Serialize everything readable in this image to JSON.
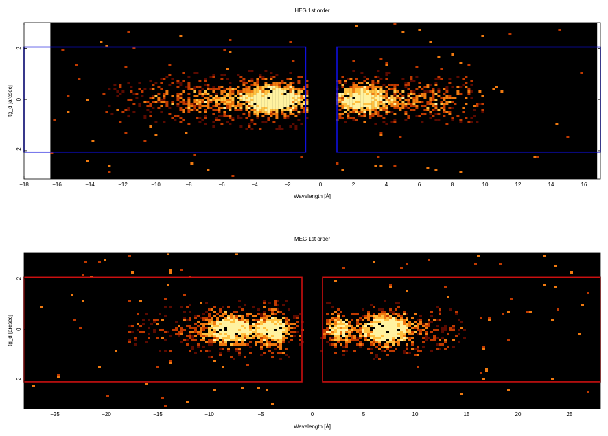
{
  "chart_data": [
    {
      "type": "heatmap",
      "title": "HEG 1st order",
      "xlabel": "Wavelength [Å]",
      "ylabel": "tg_d [arcsec]",
      "xlim": [
        -18,
        17
      ],
      "ylim": [
        -3.1,
        3.0
      ],
      "data_xlim": [
        -16.4,
        16.8
      ],
      "xticks": [
        -18,
        -16,
        -14,
        -12,
        -10,
        -8,
        -6,
        -4,
        -2,
        0,
        2,
        4,
        6,
        8,
        10,
        12,
        14,
        16
      ],
      "xtick_labels": [
        "−18",
        "−16",
        "−14",
        "−12",
        "−10",
        "−8",
        "−6",
        "−4",
        "−2",
        "0",
        "2",
        "4",
        "6",
        "8",
        "10",
        "12",
        "14",
        "16"
      ],
      "yticks": [
        -2,
        0,
        2
      ],
      "ytick_labels": [
        "−2",
        "0",
        "2"
      ],
      "colormap": [
        "#000000",
        "#5a0a00",
        "#c03a00",
        "#f07a10",
        "#ffc040",
        "#fff2a0"
      ],
      "regions": [
        {
          "color": "#1010dd",
          "x0": -18,
          "x1": -0.9,
          "y0": -2.05,
          "y1": 2.05
        },
        {
          "color": "#1010dd",
          "x0": 1.0,
          "x1": 17,
          "y0": -2.05,
          "y1": 2.05
        }
      ],
      "emission": [
        {
          "center": -2.6,
          "sigma": 1.4,
          "amp": 1.0
        },
        {
          "center": -6.5,
          "sigma": 3.0,
          "amp": 0.45
        },
        {
          "center": 2.4,
          "sigma": 1.2,
          "amp": 0.9
        },
        {
          "center": 6.4,
          "sigma": 2.4,
          "amp": 0.45
        }
      ],
      "emission_range": [
        -13,
        10
      ]
    },
    {
      "type": "heatmap",
      "title": "MEG 1st order",
      "xlabel": "Wavelength [Å]",
      "ylabel": "tg_d [arcsec]",
      "xlim": [
        -28,
        28
      ],
      "ylim": [
        -3.1,
        3.0
      ],
      "data_xlim": [
        -28,
        28
      ],
      "xticks": [
        -25,
        -20,
        -15,
        -10,
        -5,
        0,
        5,
        10,
        15,
        20,
        25
      ],
      "xtick_labels": [
        "−25",
        "−20",
        "−15",
        "−10",
        "−5",
        "0",
        "5",
        "10",
        "15",
        "20",
        "25"
      ],
      "yticks": [
        -2,
        0,
        2
      ],
      "ytick_labels": [
        "−2",
        "0",
        "2"
      ],
      "colormap": [
        "#000000",
        "#5a0a00",
        "#c03a00",
        "#f07a10",
        "#ffc040",
        "#fff2a0"
      ],
      "regions": [
        {
          "color": "#cc1010",
          "x0": -28,
          "x1": -1.0,
          "y0": -2.05,
          "y1": 2.05
        },
        {
          "color": "#cc1010",
          "x0": 1.0,
          "x1": 28,
          "y0": -2.05,
          "y1": 2.05
        }
      ],
      "emission": [
        {
          "center": -3.6,
          "sigma": 1.1,
          "amp": 1.0
        },
        {
          "center": -7.8,
          "sigma": 1.6,
          "amp": 0.85
        },
        {
          "center": 2.5,
          "sigma": 0.9,
          "amp": 0.8
        },
        {
          "center": 7.0,
          "sigma": 1.6,
          "amp": 1.0
        },
        {
          "center": -10,
          "sigma": 4.0,
          "amp": 0.3
        },
        {
          "center": 9.5,
          "sigma": 3.0,
          "amp": 0.3
        }
      ],
      "emission_range": [
        -18,
        15
      ]
    }
  ]
}
